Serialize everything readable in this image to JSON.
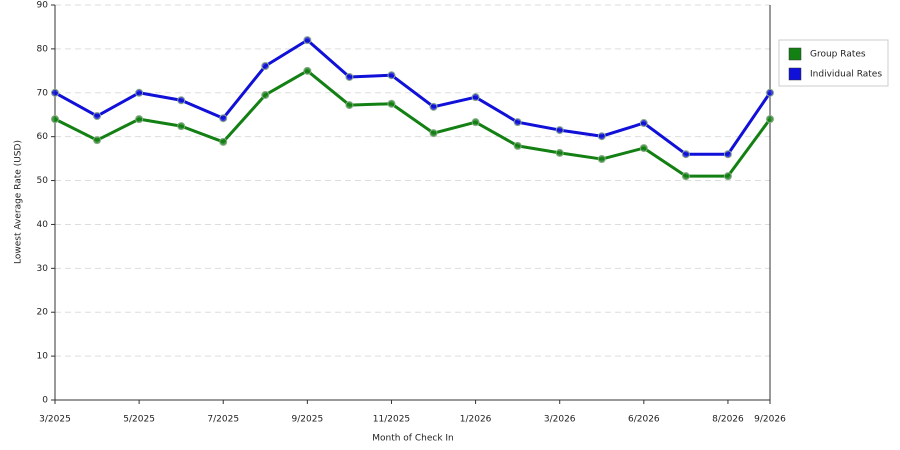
{
  "chart_data": {
    "type": "line",
    "x_label": "Month of Check In",
    "y_label": "Lowest Average Rate (USD)",
    "categories": [
      "3/2025",
      null,
      "5/2025",
      null,
      "7/2025",
      null,
      "9/2025",
      null,
      "11/2025",
      null,
      "1/2026",
      null,
      "3/2026",
      null,
      "6/2026",
      null,
      "8/2026",
      "9/2026"
    ],
    "series": [
      {
        "name": "Group Rates",
        "color": "#138013",
        "values": [
          64.0,
          59.2,
          64.0,
          62.4,
          58.8,
          69.5,
          75.0,
          67.2,
          67.5,
          60.8,
          63.3,
          57.9,
          56.3,
          54.9,
          57.4,
          51.0,
          51.0,
          64.0
        ]
      },
      {
        "name": "Individual Rates",
        "color": "#1010d8",
        "values": [
          70.0,
          64.7,
          70.0,
          68.3,
          64.2,
          76.1,
          82.0,
          73.6,
          74.0,
          66.8,
          69.0,
          63.3,
          61.5,
          60.1,
          63.1,
          56.0,
          56.0,
          70.0
        ]
      }
    ],
    "ylim": [
      0,
      90
    ],
    "yticks": [
      0,
      10,
      20,
      30,
      40,
      50,
      60,
      70,
      80,
      90
    ],
    "grid": true,
    "legend": "right"
  }
}
